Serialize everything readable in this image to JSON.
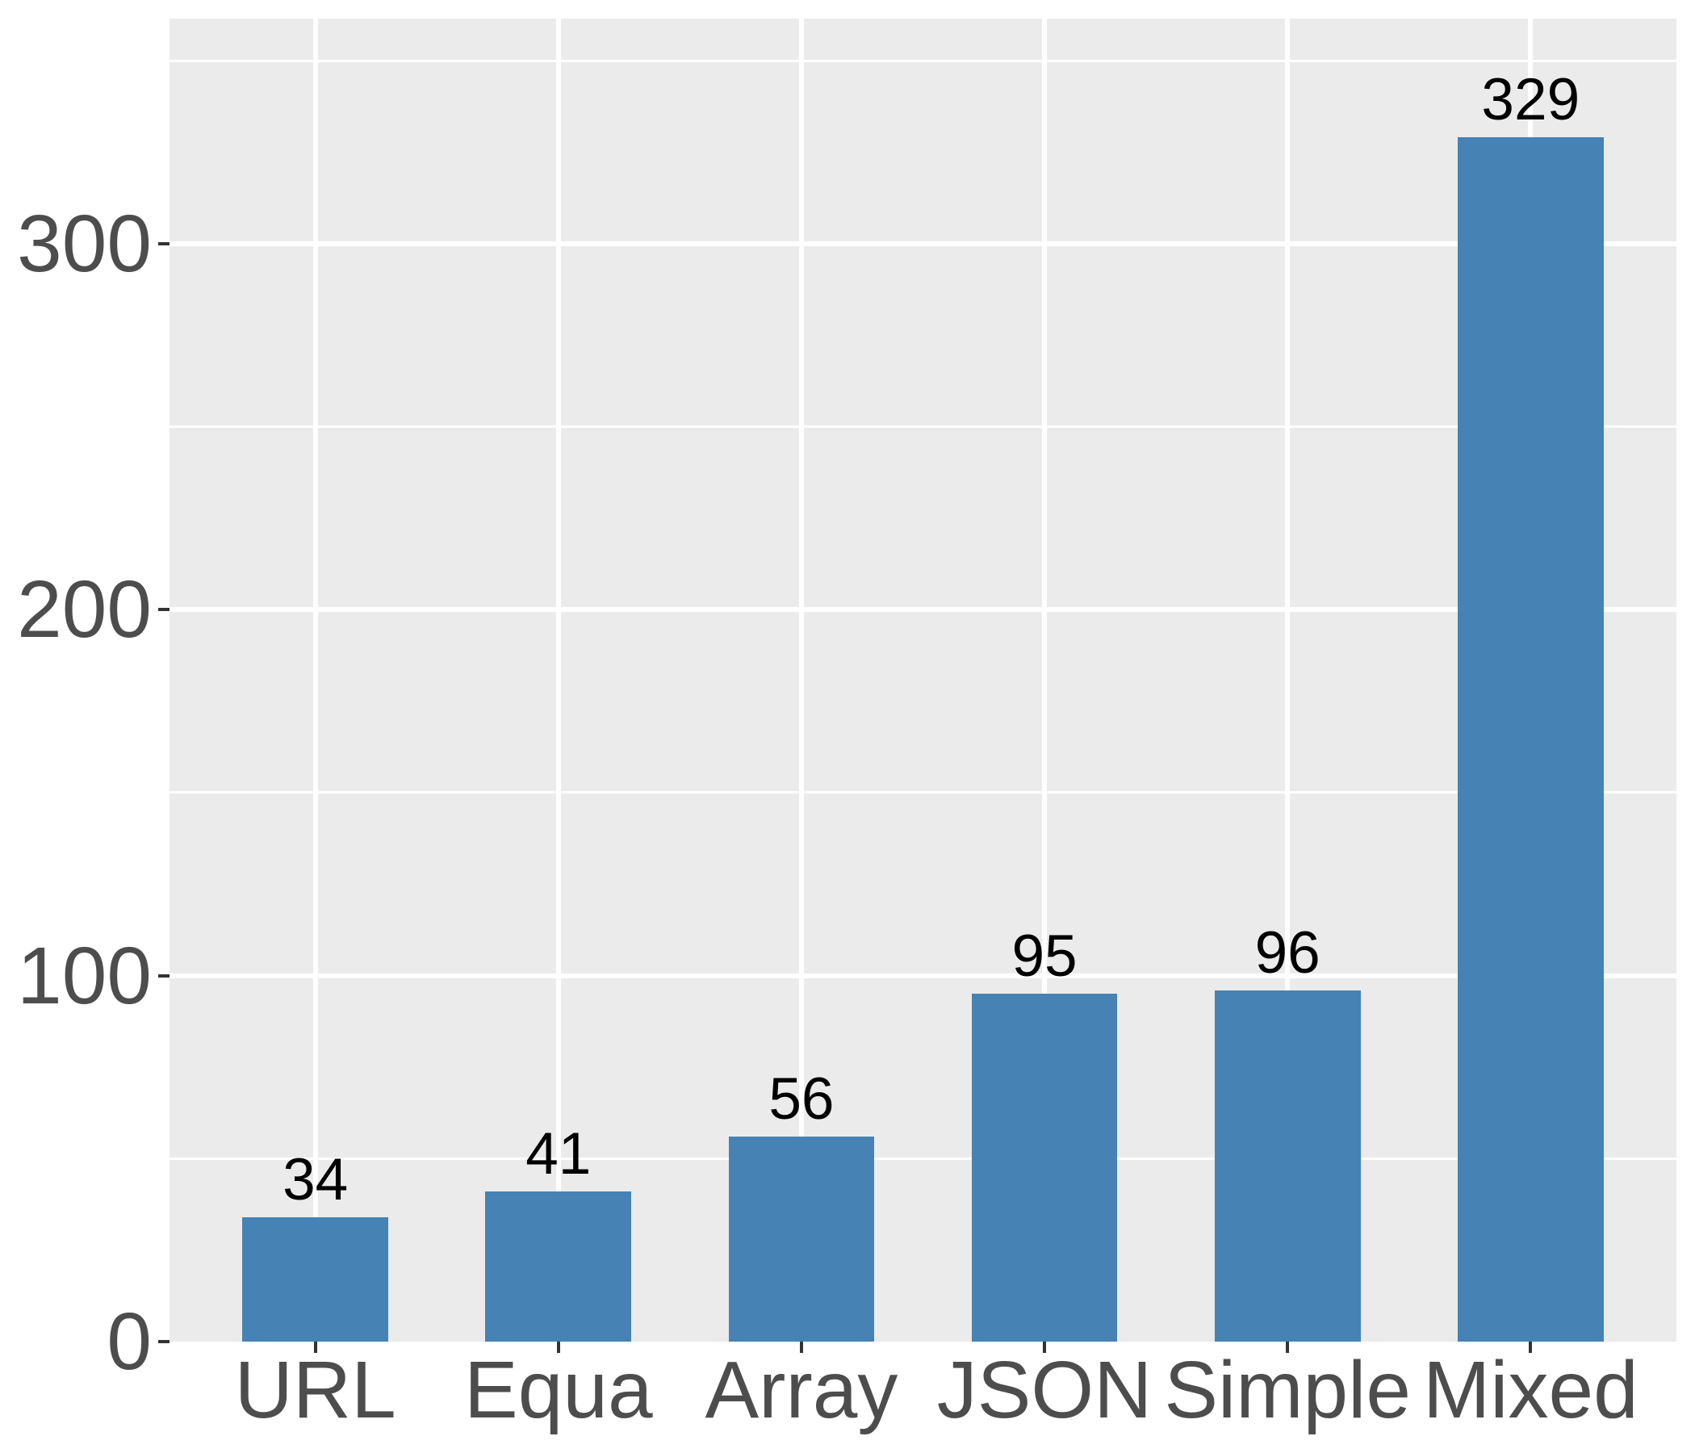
{
  "chart_data": {
    "type": "bar",
    "title": "",
    "xlabel": "",
    "ylabel": "",
    "categories": [
      "URL",
      "Equa",
      "Array",
      "JSON",
      "Simple",
      "Mixed"
    ],
    "values": [
      34,
      41,
      56,
      95,
      96,
      329
    ],
    "bar_labels": [
      "34",
      "41",
      "56",
      "95",
      "96",
      "329"
    ],
    "yticks": [
      0,
      100,
      200,
      300
    ],
    "ytick_labels": [
      "0",
      "100",
      "200",
      "300"
    ],
    "yticks_minor": [
      50,
      150,
      250,
      350
    ],
    "ylim": [
      0,
      361.5
    ],
    "grid": "on",
    "legend": "none",
    "bar_width_ratio": 0.6,
    "colors": {
      "bar": "#4682B4",
      "panel_bg": "#EBEBEB",
      "grid_major": "#FFFFFF",
      "grid_minor": "#FFFFFF",
      "axis_text": "#4D4D4D",
      "value_label": "#000000",
      "tick_mark": "#333333",
      "page_bg": "#FFFFFF"
    }
  }
}
